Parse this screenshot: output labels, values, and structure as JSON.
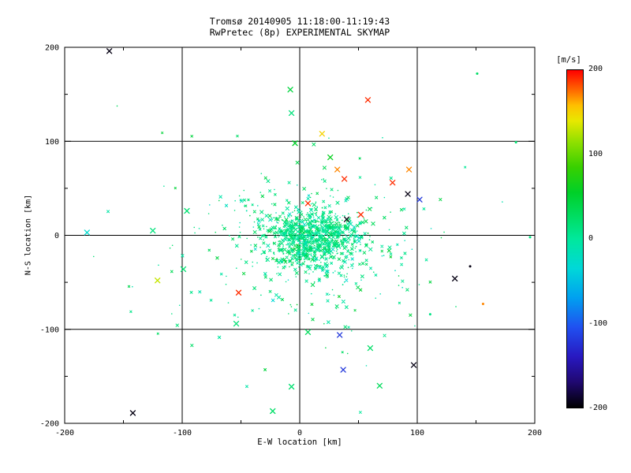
{
  "page": {
    "background": "#ffffff",
    "text_color": "#000000"
  },
  "chart_data": {
    "type": "scatter",
    "title": "Tromsø 20140905 11:18:00-11:19:43",
    "subtitle": "RwPretec (8p) EXPERIMENTAL SKYMAP",
    "xlabel": "E-W location [km]",
    "ylabel": "N-S location [km]",
    "xlim": [
      -200,
      200
    ],
    "ylim": [
      -200,
      200
    ],
    "x_ticks": [
      -200,
      -100,
      0,
      100,
      200
    ],
    "y_ticks": [
      -200,
      -100,
      0,
      100,
      200
    ],
    "grid_values": [
      -100,
      0,
      100
    ],
    "minor_tick_step": 50,
    "grid": "on",
    "marker": "x",
    "colorbar": {
      "label": "[m/s]",
      "ticks": [
        200,
        100,
        0,
        -100,
        -200
      ],
      "vmin": -200,
      "vmax": 200,
      "stops": [
        {
          "v": -200,
          "color": "#000000"
        },
        {
          "v": -170,
          "color": "#200870"
        },
        {
          "v": -140,
          "color": "#2818c0"
        },
        {
          "v": -105,
          "color": "#2050f0"
        },
        {
          "v": -70,
          "color": "#00a0f0"
        },
        {
          "v": -35,
          "color": "#00d8d8"
        },
        {
          "v": 0,
          "color": "#00e89c"
        },
        {
          "v": 20,
          "color": "#00e070"
        },
        {
          "v": 55,
          "color": "#00d028"
        },
        {
          "v": 85,
          "color": "#38d000"
        },
        {
          "v": 115,
          "color": "#90e000"
        },
        {
          "v": 140,
          "color": "#e8e800"
        },
        {
          "v": 158,
          "color": "#ffc000"
        },
        {
          "v": 178,
          "color": "#ff6000"
        },
        {
          "v": 200,
          "color": "#ff0000"
        }
      ]
    },
    "cluster": {
      "description": "dense cloud of near-zero-velocity echoes centered near origin",
      "seed": 1337,
      "components": [
        {
          "count": 800,
          "cx": 12,
          "cy": -3,
          "sx": 20,
          "sy": 15,
          "v_mean": 12,
          "v_sd": 16,
          "s_min": 1.2,
          "s_max": 2.2
        },
        {
          "count": 330,
          "cx": 4,
          "cy": -10,
          "sx": 46,
          "sy": 38,
          "v_mean": 10,
          "v_sd": 20,
          "s_min": 1.1,
          "s_max": 2.0
        },
        {
          "count": 70,
          "cx": 0,
          "cy": -5,
          "sx": 105,
          "sy": 90,
          "v_mean": 14,
          "v_sd": 18,
          "s_min": 1.0,
          "s_max": 1.6
        }
      ]
    },
    "outliers": [
      {
        "x": -162,
        "y": 196,
        "v": -195
      },
      {
        "x": 151,
        "y": 172,
        "v": 25,
        "m": "dot"
      },
      {
        "x": 58,
        "y": 144,
        "v": 190
      },
      {
        "x": -8,
        "y": 155,
        "v": 45
      },
      {
        "x": -7,
        "y": 130,
        "v": 15
      },
      {
        "x": 19,
        "y": 108,
        "v": 150
      },
      {
        "x": -4,
        "y": 98,
        "v": 55
      },
      {
        "x": 184,
        "y": 99,
        "v": 20,
        "m": "dot"
      },
      {
        "x": 32,
        "y": 70,
        "v": 170
      },
      {
        "x": 38,
        "y": 60,
        "v": 190
      },
      {
        "x": 26,
        "y": 83,
        "v": 60
      },
      {
        "x": 93,
        "y": 70,
        "v": 170
      },
      {
        "x": 79,
        "y": 56,
        "v": 190
      },
      {
        "x": 92,
        "y": 44,
        "v": -195
      },
      {
        "x": 102,
        "y": 38,
        "v": -120
      },
      {
        "x": 52,
        "y": 22,
        "v": 190
      },
      {
        "x": 40,
        "y": 17,
        "v": -195
      },
      {
        "x": 7,
        "y": 34,
        "v": 190
      },
      {
        "x": -181,
        "y": 3,
        "v": -30
      },
      {
        "x": -96,
        "y": 26,
        "v": 20
      },
      {
        "x": -125,
        "y": 5,
        "v": 15
      },
      {
        "x": 196,
        "y": -2,
        "v": 12,
        "m": "dot"
      },
      {
        "x": 145,
        "y": -33,
        "v": -195,
        "m": "dot"
      },
      {
        "x": 132,
        "y": -46,
        "v": -195
      },
      {
        "x": -121,
        "y": -48,
        "v": 130
      },
      {
        "x": -52,
        "y": -61,
        "v": 190
      },
      {
        "x": -99,
        "y": -36,
        "v": 20
      },
      {
        "x": 156,
        "y": -73,
        "v": 170,
        "m": "dot"
      },
      {
        "x": 111,
        "y": -84,
        "v": 10,
        "m": "dot"
      },
      {
        "x": 34,
        "y": -106,
        "v": -120
      },
      {
        "x": 7,
        "y": -103,
        "v": 30
      },
      {
        "x": 60,
        "y": -120,
        "v": 25
      },
      {
        "x": 97,
        "y": -138,
        "v": -195
      },
      {
        "x": 37,
        "y": -143,
        "v": -120
      },
      {
        "x": 68,
        "y": -160,
        "v": 30
      },
      {
        "x": -7,
        "y": -161,
        "v": 20
      },
      {
        "x": -54,
        "y": -94,
        "v": 18
      },
      {
        "x": -142,
        "y": -189,
        "v": -195
      },
      {
        "x": -23,
        "y": -187,
        "v": 25
      }
    ]
  }
}
